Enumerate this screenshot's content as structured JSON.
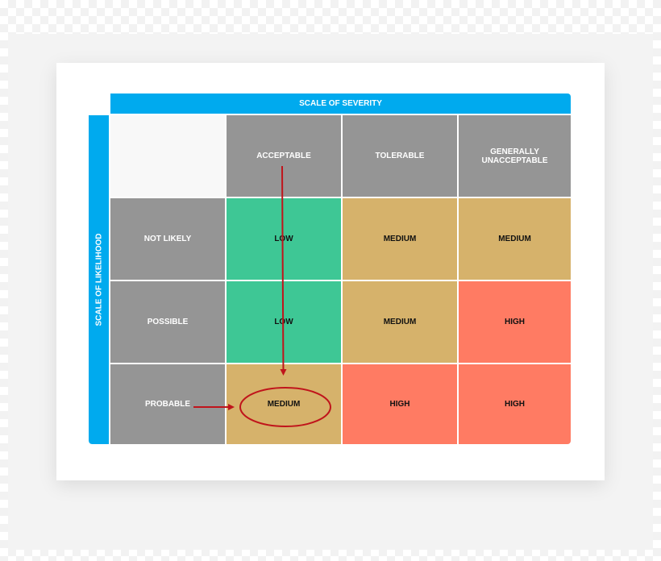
{
  "matrix": {
    "severity_title": "SCALE OF SEVERITY",
    "likelihood_title": "SCALE OF LIKELIHOOD",
    "severity_levels": [
      "ACCEPTABLE",
      "TOLERABLE",
      "GENERALLY UNACCEPTABLE"
    ],
    "likelihood_levels": [
      "NOT LIKELY",
      "POSSIBLE",
      "PROBABLE"
    ],
    "rows": [
      [
        "LOW",
        "MEDIUM",
        "MEDIUM"
      ],
      [
        "LOW",
        "MEDIUM",
        "HIGH"
      ],
      [
        "MEDIUM",
        "HIGH",
        "HIGH"
      ]
    ]
  },
  "colors": {
    "band": "#00aaee",
    "header_gray": "#959595",
    "low": "#3ec795",
    "medium": "#d6b26b",
    "high": "#ff7b63",
    "annotation": "#c0141b"
  }
}
